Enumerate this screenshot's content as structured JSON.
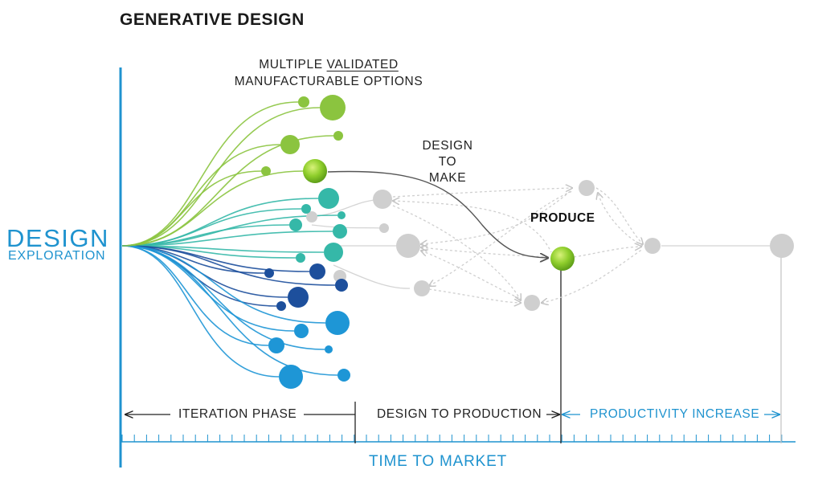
{
  "title": "GENERATIVE DESIGN",
  "options_label": {
    "line1_prefix": "MULTIPLE ",
    "line1_underlined": "VALIDATED",
    "line2": "MANUFACTURABLE OPTIONS"
  },
  "design_to_make": [
    "DESIGN",
    "TO",
    "MAKE"
  ],
  "produce_label": "PRODUCE",
  "y_axis": {
    "line1": "DESIGN",
    "line2": "EXPLORATION"
  },
  "phases": {
    "iteration": "ITERATION PHASE",
    "design_to_production": "DESIGN TO PRODUCTION",
    "productivity_increase": "PRODUCTIVITY INCREASE"
  },
  "x_axis": "TIME TO MARKET",
  "colors": {
    "axis_blue": "#1f93cf",
    "lime": "#8bc43f",
    "teal": "#35b8a8",
    "dark_blue": "#1d4f9c",
    "light_blue": "#1e96d6",
    "gray": "#cfcfcf",
    "dark_line": "#555555"
  }
}
